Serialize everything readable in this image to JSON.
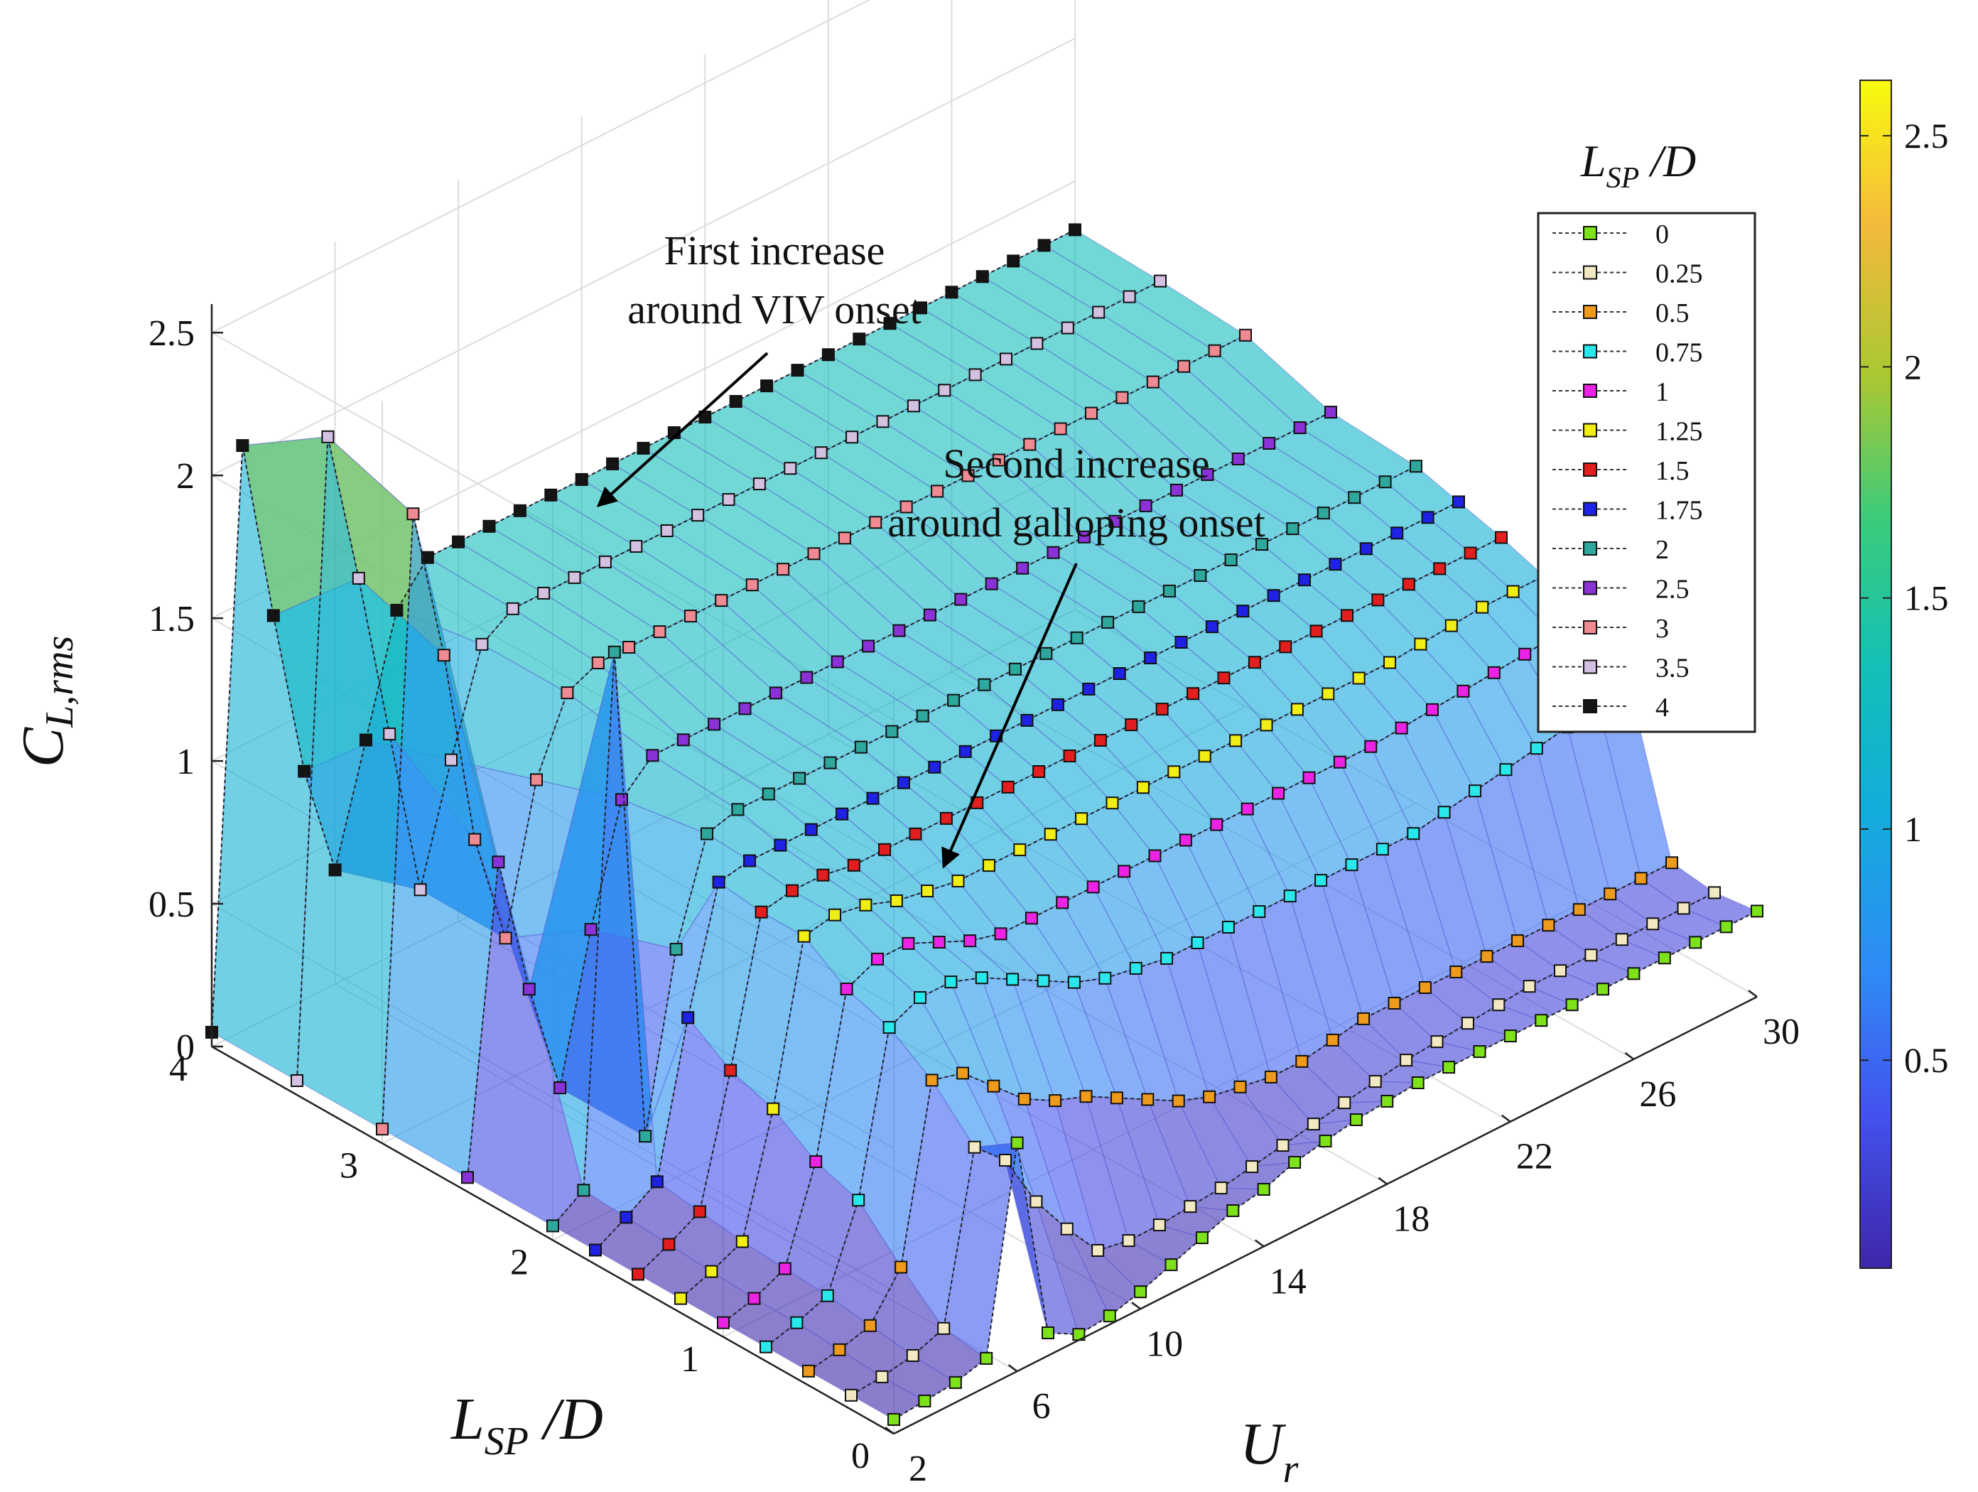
{
  "figure": {
    "annotations": {
      "first": [
        "First increase",
        "around VIV onset"
      ],
      "second": [
        "Second increase",
        "around galloping onset"
      ]
    }
  },
  "chart_data": {
    "type": "surface",
    "title": "",
    "zlabel": {
      "main": "C",
      "sub": "L,rms"
    },
    "xlabel": {
      "main": "U",
      "sub": "r"
    },
    "ylabel": {
      "main": "L",
      "sub": "SP",
      "suffix": " /D"
    },
    "xlim": [
      2,
      30
    ],
    "ylim": [
      0,
      4
    ],
    "zlim": [
      0,
      2.6
    ],
    "x_ticks": [
      "2",
      "6",
      "10",
      "14",
      "18",
      "22",
      "26",
      "30"
    ],
    "y_ticks": [
      "0",
      "1",
      "2",
      "3",
      "4"
    ],
    "z_ticks": [
      "0",
      "0.5",
      "1",
      "1.5",
      "2",
      "2.5"
    ],
    "colorbar": {
      "ticks": [
        "0.5",
        "1",
        "1.5",
        "2",
        "2.5"
      ],
      "range": [
        0.05,
        2.62
      ]
    },
    "legend": {
      "title": {
        "main": "L",
        "sub": "SP",
        "suffix": " /D"
      },
      "placement": "top-right",
      "entries": [
        {
          "label": "0",
          "color": "#7ee21a"
        },
        {
          "label": "0.25",
          "color": "#f2e8c2"
        },
        {
          "label": "0.5",
          "color": "#ee9a1c"
        },
        {
          "label": "0.75",
          "color": "#28e8ec"
        },
        {
          "label": "1",
          "color": "#ec23e4"
        },
        {
          "label": "1.25",
          "color": "#f0ee14"
        },
        {
          "label": "1.5",
          "color": "#e21e1e"
        },
        {
          "label": "1.75",
          "color": "#1e22e4"
        },
        {
          "label": "2",
          "color": "#2ea89c"
        },
        {
          "label": "2.5",
          "color": "#8a32d8"
        },
        {
          "label": "3",
          "color": "#f08a92"
        },
        {
          "label": "3.5",
          "color": "#d4c0e0"
        },
        {
          "label": "4",
          "color": "#141414"
        }
      ]
    },
    "ur": [
      2,
      3,
      4,
      5,
      6,
      7,
      8,
      9,
      10,
      11,
      12,
      13,
      14,
      15,
      16,
      17,
      18,
      19,
      20,
      21,
      22,
      23,
      24,
      25,
      26,
      27,
      28,
      29,
      30
    ],
    "series": [
      {
        "name": "0",
        "lsp": 0,
        "values": [
          0.05,
          0.06,
          0.07,
          0.1,
          0.8,
          0.08,
          0.02,
          0.03,
          0.06,
          0.1,
          0.14,
          0.18,
          0.2,
          0.24,
          0.26,
          0.28,
          0.29,
          0.3,
          0.3,
          0.3,
          0.3,
          0.3,
          0.3,
          0.3,
          0.3,
          0.3,
          0.3,
          0.3,
          0.3
        ]
      },
      {
        "name": "0.25",
        "lsp": 0.25,
        "values": [
          0.05,
          0.06,
          0.08,
          0.12,
          0.7,
          0.6,
          0.4,
          0.25,
          0.12,
          0.1,
          0.1,
          0.11,
          0.12,
          0.14,
          0.16,
          0.18,
          0.2,
          0.22,
          0.24,
          0.25,
          0.26,
          0.27,
          0.28,
          0.28,
          0.28,
          0.28,
          0.28,
          0.28,
          0.28
        ]
      },
      {
        "name": "0.5",
        "lsp": 0.5,
        "values": [
          0.05,
          0.07,
          0.1,
          0.25,
          0.85,
          0.82,
          0.72,
          0.62,
          0.56,
          0.52,
          0.46,
          0.4,
          0.34,
          0.3,
          0.28,
          0.26,
          0.26,
          0.28,
          0.3,
          0.3,
          0.3,
          0.3,
          0.3,
          0.3,
          0.3,
          0.3,
          0.3,
          0.3,
          0.3
        ]
      },
      {
        "name": "0.75",
        "lsp": 0.75,
        "values": [
          0.05,
          0.08,
          0.12,
          0.4,
          0.95,
          1.0,
          1.0,
          0.96,
          0.9,
          0.84,
          0.78,
          0.74,
          0.72,
          0.7,
          0.7,
          0.7,
          0.7,
          0.7,
          0.7,
          0.7,
          0.7,
          0.7,
          0.72,
          0.74,
          0.76,
          0.78,
          0.8,
          0.82,
          0.84
        ]
      },
      {
        "name": "1",
        "lsp": 1,
        "values": [
          0.05,
          0.08,
          0.13,
          0.45,
          1.0,
          1.05,
          1.05,
          1.0,
          0.95,
          0.92,
          0.92,
          0.92,
          0.92,
          0.92,
          0.92,
          0.92,
          0.92,
          0.92,
          0.92,
          0.92,
          0.92,
          0.92,
          0.93,
          0.94,
          0.95,
          0.96,
          0.97,
          0.98,
          0.98
        ]
      },
      {
        "name": "1.25",
        "lsp": 1.25,
        "values": [
          0.05,
          0.09,
          0.14,
          0.55,
          1.1,
          1.12,
          1.1,
          1.06,
          1.04,
          1.02,
          1.02,
          1.02,
          1.02,
          1.02,
          1.02,
          1.02,
          1.02,
          1.02,
          1.02,
          1.02,
          1.02,
          1.02,
          1.02,
          1.02,
          1.03,
          1.04,
          1.05,
          1.05,
          1.05
        ]
      },
      {
        "name": "1.5",
        "lsp": 1.5,
        "values": [
          0.05,
          0.1,
          0.16,
          0.6,
          1.1,
          1.12,
          1.12,
          1.1,
          1.1,
          1.1,
          1.1,
          1.1,
          1.1,
          1.1,
          1.1,
          1.1,
          1.1,
          1.1,
          1.1,
          1.1,
          1.1,
          1.1,
          1.1,
          1.1,
          1.1,
          1.1,
          1.1,
          1.1,
          1.1
        ]
      },
      {
        "name": "1.75",
        "lsp": 1.75,
        "values": [
          0.05,
          0.11,
          0.18,
          0.7,
          1.12,
          1.14,
          1.14,
          1.14,
          1.14,
          1.14,
          1.14,
          1.14,
          1.14,
          1.14,
          1.14,
          1.14,
          1.14,
          1.14,
          1.14,
          1.14,
          1.14,
          1.14,
          1.14,
          1.14,
          1.14,
          1.14,
          1.14,
          1.14,
          1.14
        ]
      },
      {
        "name": "2",
        "lsp": 2,
        "values": [
          0.05,
          0.12,
          1.95,
          0.2,
          0.8,
          1.15,
          1.18,
          1.18,
          1.18,
          1.18,
          1.18,
          1.18,
          1.18,
          1.18,
          1.18,
          1.18,
          1.18,
          1.18,
          1.18,
          1.18,
          1.18,
          1.18,
          1.18,
          1.18,
          1.18,
          1.18,
          1.18,
          1.18,
          1.18
        ]
      },
      {
        "name": "2.5",
        "lsp": 2.5,
        "values": [
          0.05,
          1.1,
          0.6,
          0.2,
          0.7,
          1.1,
          1.2,
          1.2,
          1.2,
          1.2,
          1.2,
          1.2,
          1.2,
          1.2,
          1.2,
          1.2,
          1.2,
          1.2,
          1.2,
          1.2,
          1.2,
          1.2,
          1.2,
          1.2,
          1.2,
          1.2,
          1.2,
          1.2,
          1.2
        ]
      },
      {
        "name": "3",
        "lsp": 3,
        "values": [
          0.05,
          2.15,
          1.6,
          0.9,
          0.5,
          1.0,
          1.25,
          1.3,
          1.3,
          1.3,
          1.3,
          1.3,
          1.3,
          1.3,
          1.3,
          1.3,
          1.3,
          1.3,
          1.3,
          1.3,
          1.3,
          1.3,
          1.3,
          1.3,
          1.3,
          1.3,
          1.3,
          1.3,
          1.3
        ]
      },
      {
        "name": "3.5",
        "lsp": 3.5,
        "values": [
          0.05,
          2.25,
          1.7,
          1.1,
          0.5,
          0.9,
          1.25,
          1.32,
          1.32,
          1.32,
          1.32,
          1.32,
          1.32,
          1.32,
          1.32,
          1.32,
          1.32,
          1.32,
          1.32,
          1.32,
          1.32,
          1.32,
          1.32,
          1.32,
          1.32,
          1.32,
          1.32,
          1.32,
          1.32
        ]
      },
      {
        "name": "4",
        "lsp": 4,
        "values": [
          0.05,
          2.05,
          1.4,
          0.8,
          0.4,
          0.8,
          1.2,
          1.33,
          1.33,
          1.33,
          1.33,
          1.33,
          1.33,
          1.33,
          1.33,
          1.33,
          1.33,
          1.33,
          1.33,
          1.33,
          1.33,
          1.33,
          1.33,
          1.33,
          1.33,
          1.33,
          1.33,
          1.33,
          1.33
        ]
      }
    ]
  }
}
